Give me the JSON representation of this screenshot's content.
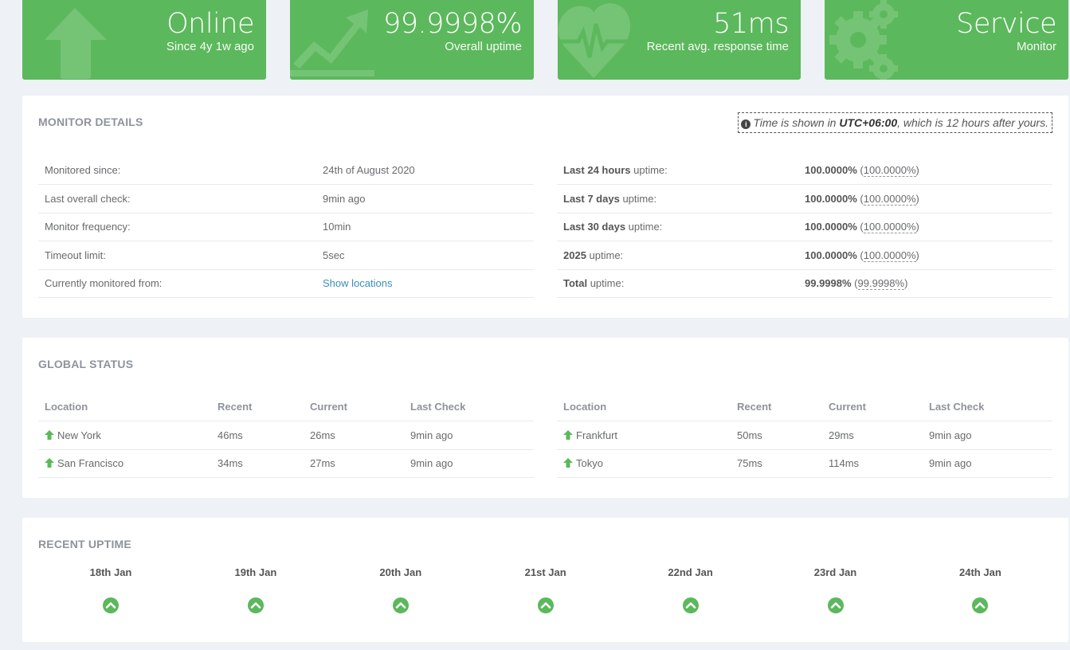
{
  "tiles": [
    {
      "value": "Online",
      "sub": "Since 4y 1w ago",
      "icon": "arrow-up-icon"
    },
    {
      "value": "99.9998%",
      "sub": "Overall uptime",
      "icon": "trend-up-icon"
    },
    {
      "value": "51ms",
      "sub": "Recent avg. response time",
      "icon": "heartbeat-icon"
    },
    {
      "value": "Service",
      "sub": "Monitor",
      "icon": "gears-icon"
    }
  ],
  "colors": {
    "accent": "#5cb85c",
    "link": "#3c8dbc"
  },
  "monitor_details": {
    "title": "MONITOR DETAILS",
    "tz_prefix": "Time is shown in ",
    "tz_zone": "UTC+06:00",
    "tz_suffix": ", which is 12 hours after yours.",
    "left_rows": [
      {
        "label": "Monitored since:",
        "value": "24th of August 2020"
      },
      {
        "label": "Last overall check:",
        "value": "9min ago"
      },
      {
        "label": "Monitor frequency:",
        "value": "10min"
      },
      {
        "label": "Timeout limit:",
        "value": "5sec"
      },
      {
        "label": "Currently monitored from:",
        "value": "Show locations"
      }
    ],
    "right_rows": [
      {
        "period": "Last 24 hours",
        "suffix": " uptime:",
        "value": "100.0000%",
        "detail": "100.0000%"
      },
      {
        "period": "Last 7 days",
        "suffix": " uptime:",
        "value": "100.0000%",
        "detail": "100.0000%"
      },
      {
        "period": "Last 30 days",
        "suffix": " uptime:",
        "value": "100.0000%",
        "detail": "100.0000%"
      },
      {
        "period": "2025",
        "suffix": " uptime:",
        "value": "100.0000%",
        "detail": "100.0000%"
      },
      {
        "period": "Total",
        "suffix": " uptime:",
        "value": "99.9998%",
        "detail": "99.9998%"
      }
    ]
  },
  "global_status": {
    "title": "GLOBAL STATUS",
    "headers": {
      "location": "Location",
      "recent": "Recent",
      "current": "Current",
      "last_check": "Last Check"
    },
    "left": [
      {
        "location": "New York",
        "recent": "46ms",
        "current": "26ms",
        "last_check": "9min ago"
      },
      {
        "location": "San Francisco",
        "recent": "34ms",
        "current": "27ms",
        "last_check": "9min ago"
      }
    ],
    "right": [
      {
        "location": "Frankfurt",
        "recent": "50ms",
        "current": "29ms",
        "last_check": "9min ago"
      },
      {
        "location": "Tokyo",
        "recent": "75ms",
        "current": "114ms",
        "last_check": "9min ago"
      }
    ]
  },
  "recent_uptime": {
    "title": "RECENT UPTIME",
    "days": [
      "18th Jan",
      "19th Jan",
      "20th Jan",
      "21st Jan",
      "22nd Jan",
      "23rd Jan",
      "24th Jan"
    ]
  }
}
